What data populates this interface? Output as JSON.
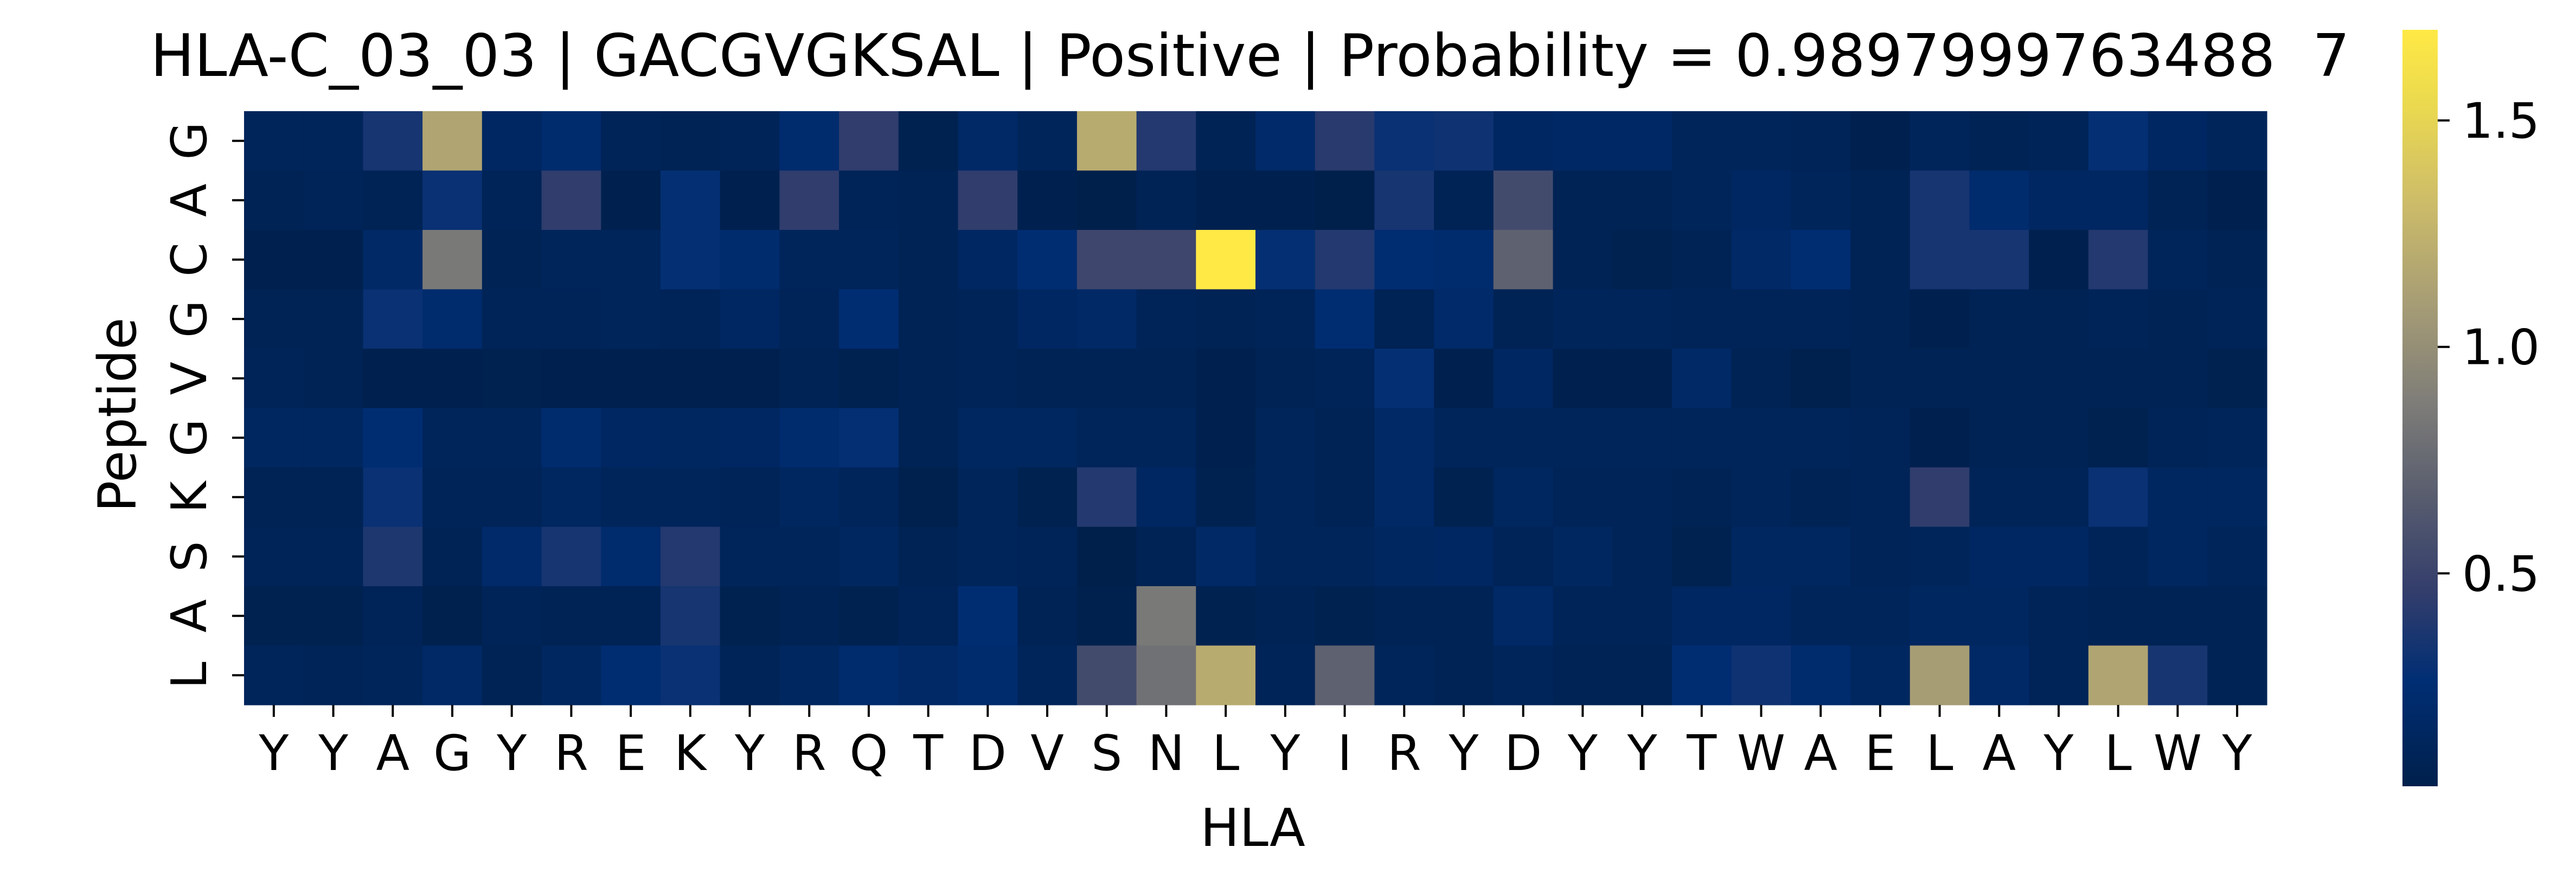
{
  "chart_data": {
    "type": "heatmap",
    "title": "HLA-C_03_03 | GACGVGKSAL | Positive | Probability = 0.9897999763488  7",
    "xlabel": "HLA",
    "ylabel": "Peptide",
    "x_categories": [
      "Y",
      "Y",
      "A",
      "G",
      "Y",
      "R",
      "E",
      "K",
      "Y",
      "R",
      "Q",
      "T",
      "D",
      "V",
      "S",
      "N",
      "L",
      "Y",
      "I",
      "R",
      "Y",
      "D",
      "Y",
      "Y",
      "T",
      "W",
      "A",
      "E",
      "L",
      "A",
      "Y",
      "L",
      "W",
      "Y"
    ],
    "y_categories": [
      "G",
      "A",
      "C",
      "G",
      "V",
      "G",
      "K",
      "S",
      "A",
      "L"
    ],
    "values": [
      [
        0.12,
        0.12,
        0.35,
        1.15,
        0.15,
        0.22,
        0.1,
        0.08,
        0.1,
        0.22,
        0.45,
        0.06,
        0.18,
        0.12,
        1.2,
        0.4,
        0.08,
        0.2,
        0.42,
        0.3,
        0.32,
        0.15,
        0.17,
        0.17,
        0.12,
        0.12,
        0.1,
        0.05,
        0.12,
        0.08,
        0.1,
        0.28,
        0.15,
        0.12
      ],
      [
        0.08,
        0.1,
        0.08,
        0.3,
        0.1,
        0.45,
        0.05,
        0.28,
        0.05,
        0.45,
        0.1,
        0.08,
        0.45,
        0.05,
        0.03,
        0.08,
        0.05,
        0.05,
        0.03,
        0.35,
        0.08,
        0.55,
        0.08,
        0.08,
        0.12,
        0.15,
        0.12,
        0.08,
        0.35,
        0.22,
        0.15,
        0.15,
        0.08,
        0.05
      ],
      [
        0.05,
        0.05,
        0.18,
        0.85,
        0.08,
        0.12,
        0.12,
        0.28,
        0.22,
        0.12,
        0.12,
        0.08,
        0.15,
        0.25,
        0.52,
        0.52,
        1.7,
        0.28,
        0.4,
        0.25,
        0.22,
        0.7,
        0.08,
        0.06,
        0.08,
        0.18,
        0.25,
        0.08,
        0.35,
        0.35,
        0.05,
        0.4,
        0.12,
        0.08
      ],
      [
        0.08,
        0.08,
        0.3,
        0.22,
        0.1,
        0.1,
        0.12,
        0.1,
        0.15,
        0.1,
        0.25,
        0.08,
        0.1,
        0.15,
        0.18,
        0.1,
        0.08,
        0.1,
        0.25,
        0.08,
        0.2,
        0.08,
        0.12,
        0.12,
        0.1,
        0.1,
        0.1,
        0.08,
        0.05,
        0.08,
        0.08,
        0.1,
        0.08,
        0.1
      ],
      [
        0.1,
        0.08,
        0.05,
        0.05,
        0.06,
        0.05,
        0.05,
        0.05,
        0.05,
        0.08,
        0.06,
        0.08,
        0.1,
        0.08,
        0.08,
        0.08,
        0.05,
        0.08,
        0.1,
        0.28,
        0.05,
        0.15,
        0.05,
        0.05,
        0.18,
        0.08,
        0.04,
        0.08,
        0.08,
        0.08,
        0.08,
        0.08,
        0.08,
        0.06
      ],
      [
        0.14,
        0.14,
        0.25,
        0.12,
        0.12,
        0.22,
        0.15,
        0.14,
        0.15,
        0.22,
        0.28,
        0.08,
        0.14,
        0.14,
        0.12,
        0.12,
        0.05,
        0.12,
        0.08,
        0.18,
        0.12,
        0.12,
        0.12,
        0.12,
        0.12,
        0.12,
        0.12,
        0.1,
        0.05,
        0.08,
        0.08,
        0.06,
        0.1,
        0.12
      ],
      [
        0.08,
        0.08,
        0.3,
        0.1,
        0.1,
        0.14,
        0.12,
        0.12,
        0.1,
        0.14,
        0.12,
        0.04,
        0.12,
        0.06,
        0.4,
        0.15,
        0.06,
        0.12,
        0.08,
        0.18,
        0.06,
        0.14,
        0.1,
        0.1,
        0.08,
        0.12,
        0.08,
        0.1,
        0.45,
        0.1,
        0.1,
        0.3,
        0.14,
        0.14
      ],
      [
        0.1,
        0.1,
        0.38,
        0.08,
        0.2,
        0.35,
        0.22,
        0.4,
        0.12,
        0.12,
        0.14,
        0.08,
        0.12,
        0.1,
        0.03,
        0.08,
        0.18,
        0.12,
        0.12,
        0.14,
        0.15,
        0.1,
        0.14,
        0.1,
        0.06,
        0.14,
        0.14,
        0.1,
        0.12,
        0.15,
        0.15,
        0.1,
        0.14,
        0.12
      ],
      [
        0.06,
        0.06,
        0.1,
        0.04,
        0.1,
        0.08,
        0.08,
        0.35,
        0.06,
        0.08,
        0.06,
        0.1,
        0.25,
        0.08,
        0.04,
        0.85,
        0.06,
        0.08,
        0.06,
        0.08,
        0.08,
        0.18,
        0.1,
        0.1,
        0.15,
        0.15,
        0.12,
        0.12,
        0.14,
        0.14,
        0.1,
        0.08,
        0.08,
        0.08
      ],
      [
        0.12,
        0.1,
        0.12,
        0.18,
        0.08,
        0.14,
        0.25,
        0.3,
        0.1,
        0.14,
        0.22,
        0.18,
        0.22,
        0.12,
        0.55,
        0.8,
        1.2,
        0.1,
        0.7,
        0.12,
        0.08,
        0.12,
        0.08,
        0.08,
        0.25,
        0.32,
        0.22,
        0.14,
        1.1,
        0.18,
        0.1,
        1.15,
        0.35,
        0.08
      ]
    ],
    "colorscale": "cividis",
    "vmin": 0.03,
    "vmax": 1.7,
    "colorbar_ticks": [
      "0.5",
      "1.0",
      "1.5"
    ],
    "grid": false
  }
}
